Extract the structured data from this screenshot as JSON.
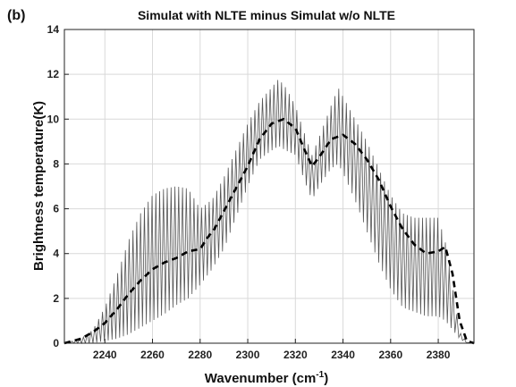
{
  "panel_label": "(b)",
  "chart_data": {
    "type": "line",
    "title": "Simulat with NLTE minus Simulat w/o NLTE",
    "xlabel": "Wavenumber",
    "xlabel_unit": "(cm",
    "xlabel_exp": "-1",
    "xlabel_close": ")",
    "ylabel": "Brightness temperature(K)",
    "xlim": [
      2223,
      2395
    ],
    "ylim": [
      0,
      14
    ],
    "x_ticks": [
      2240,
      2260,
      2280,
      2300,
      2320,
      2340,
      2360,
      2380
    ],
    "y_ticks": [
      0,
      2,
      4,
      6,
      8,
      10,
      12,
      14
    ],
    "grid": true,
    "series": [
      {
        "style": "solid-thin-gray",
        "note_max_envelope": true,
        "x": [
          2223,
          2230,
          2235,
          2240,
          2245,
          2250,
          2255,
          2260,
          2265,
          2270,
          2275,
          2280,
          2285,
          2290,
          2295,
          2300,
          2305,
          2310,
          2313,
          2316,
          2320,
          2324,
          2327,
          2330,
          2335,
          2338,
          2340,
          2345,
          2350,
          2355,
          2360,
          2365,
          2370,
          2375,
          2380,
          2383,
          2386,
          2389,
          2392,
          2395
        ],
        "upper": [
          0.0,
          0.2,
          0.6,
          1.6,
          3.0,
          4.6,
          5.8,
          6.6,
          6.9,
          7.0,
          6.9,
          6.0,
          6.4,
          7.4,
          8.6,
          9.8,
          10.8,
          11.4,
          11.8,
          11.4,
          10.6,
          9.3,
          8.4,
          9.2,
          10.6,
          11.4,
          11.0,
          10.0,
          9.0,
          7.8,
          6.6,
          5.8,
          5.6,
          5.6,
          5.6,
          4.5,
          2.5,
          0.5,
          0.05,
          0.0
        ],
        "lower": [
          0.0,
          0.0,
          0.0,
          0.1,
          0.2,
          0.4,
          0.7,
          1.0,
          1.3,
          1.7,
          2.0,
          2.6,
          3.3,
          4.2,
          5.6,
          7.0,
          8.2,
          8.6,
          8.8,
          8.6,
          8.4,
          7.2,
          6.4,
          7.0,
          7.8,
          8.0,
          7.6,
          6.4,
          5.0,
          3.6,
          2.4,
          1.6,
          1.4,
          1.2,
          1.2,
          1.0,
          0.6,
          0.2,
          0.0,
          0.0
        ]
      },
      {
        "style": "dashed-thick-black",
        "x": [
          2223,
          2230,
          2235,
          2240,
          2245,
          2250,
          2255,
          2260,
          2265,
          2270,
          2275,
          2280,
          2283,
          2286,
          2290,
          2295,
          2300,
          2305,
          2310,
          2315,
          2320,
          2324,
          2327,
          2330,
          2335,
          2340,
          2345,
          2350,
          2355,
          2360,
          2365,
          2370,
          2375,
          2380,
          2383,
          2386,
          2389,
          2392,
          2395
        ],
        "y": [
          0.0,
          0.2,
          0.5,
          0.9,
          1.5,
          2.2,
          2.8,
          3.3,
          3.6,
          3.8,
          4.1,
          4.2,
          4.7,
          5.1,
          5.9,
          6.9,
          7.9,
          9.1,
          9.8,
          10.0,
          9.6,
          8.6,
          7.9,
          8.3,
          9.1,
          9.3,
          8.9,
          8.2,
          7.3,
          6.1,
          5.1,
          4.4,
          4.0,
          4.1,
          4.3,
          3.1,
          1.0,
          0.1,
          0.0
        ]
      }
    ]
  }
}
